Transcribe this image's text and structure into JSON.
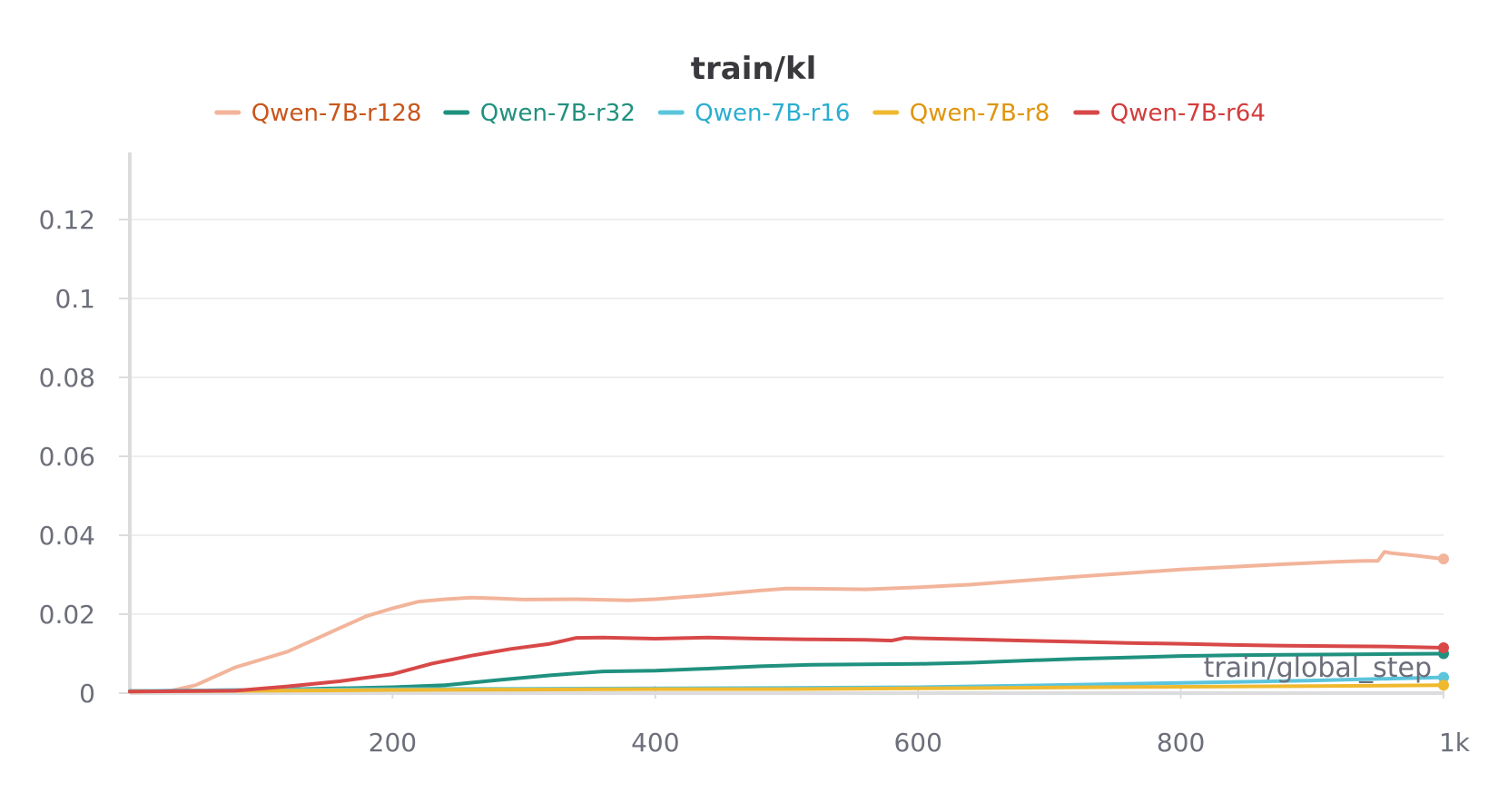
{
  "chart_data": {
    "type": "line",
    "title": "train/kl",
    "xlabel": "train/global_step",
    "ylabel": "",
    "xlim": [
      0,
      1000
    ],
    "ylim": [
      0,
      0.137
    ],
    "x_ticks": [
      200,
      400,
      600,
      800,
      1000
    ],
    "x_tick_labels": [
      "200",
      "400",
      "600",
      "800",
      "1k"
    ],
    "y_ticks": [
      0,
      0.02,
      0.04,
      0.06,
      0.08,
      0.1,
      0.12
    ],
    "y_tick_labels": [
      "0",
      "0.02",
      "0.04",
      "0.06",
      "0.08",
      "0.1",
      "0.12"
    ],
    "grid": true,
    "legend_position": "top-center",
    "series": [
      {
        "name": "Qwen-7B-r128",
        "color": "#f2b49a",
        "label_color": "#c8561c",
        "x": [
          0,
          30,
          50,
          80,
          100,
          120,
          140,
          160,
          180,
          200,
          220,
          240,
          260,
          280,
          300,
          340,
          380,
          400,
          440,
          480,
          500,
          540,
          560,
          600,
          640,
          680,
          720,
          760,
          800,
          840,
          880,
          920,
          940,
          950,
          955,
          960,
          980,
          1000
        ],
        "y": [
          0.0005,
          0.0005,
          0.002,
          0.0065,
          0.0085,
          0.0105,
          0.0135,
          0.0165,
          0.0195,
          0.0215,
          0.0232,
          0.0238,
          0.0242,
          0.024,
          0.0237,
          0.0238,
          0.0235,
          0.0238,
          0.0248,
          0.026,
          0.0265,
          0.0264,
          0.0263,
          0.0268,
          0.0275,
          0.0285,
          0.0295,
          0.0304,
          0.0313,
          0.032,
          0.0327,
          0.0333,
          0.0335,
          0.0335,
          0.0358,
          0.0355,
          0.0348,
          0.034
        ]
      },
      {
        "name": "Qwen-7B-r32",
        "color": "#20917f",
        "label_color": "#20917f",
        "x": [
          0,
          100,
          200,
          240,
          280,
          320,
          360,
          400,
          440,
          480,
          520,
          560,
          600,
          640,
          680,
          720,
          760,
          800,
          840,
          880,
          920,
          960,
          1000
        ],
        "y": [
          0.0005,
          0.0008,
          0.0015,
          0.002,
          0.0033,
          0.0045,
          0.0055,
          0.0057,
          0.0062,
          0.0068,
          0.0072,
          0.0073,
          0.0074,
          0.0077,
          0.0082,
          0.0087,
          0.009,
          0.0094,
          0.0096,
          0.0097,
          0.0098,
          0.0099,
          0.01
        ]
      },
      {
        "name": "Qwen-7B-r16",
        "color": "#5bc5dc",
        "label_color": "#2aaed0",
        "x": [
          0,
          100,
          200,
          300,
          400,
          500,
          600,
          700,
          800,
          900,
          1000
        ],
        "y": [
          0.0005,
          0.0008,
          0.001,
          0.0011,
          0.0012,
          0.0013,
          0.0015,
          0.002,
          0.0026,
          0.0032,
          0.004
        ]
      },
      {
        "name": "Qwen-7B-r8",
        "color": "#efb92f",
        "label_color": "#e0950c",
        "x": [
          0,
          100,
          200,
          300,
          400,
          500,
          600,
          700,
          800,
          900,
          1000
        ],
        "y": [
          0.0004,
          0.0006,
          0.0008,
          0.0009,
          0.001,
          0.001,
          0.0012,
          0.0014,
          0.0016,
          0.0018,
          0.002
        ]
      },
      {
        "name": "Qwen-7B-r64",
        "color": "#d84848",
        "label_color": "#d43c3c",
        "x": [
          0,
          80,
          120,
          160,
          200,
          230,
          260,
          290,
          320,
          340,
          360,
          400,
          440,
          480,
          520,
          560,
          580,
          590,
          600,
          640,
          680,
          720,
          760,
          800,
          840,
          880,
          920,
          960,
          1000
        ],
        "y": [
          0.0004,
          0.0006,
          0.0017,
          0.003,
          0.0048,
          0.0075,
          0.0095,
          0.0112,
          0.0125,
          0.014,
          0.0141,
          0.0138,
          0.0141,
          0.0138,
          0.0136,
          0.0135,
          0.0133,
          0.014,
          0.0139,
          0.0136,
          0.0133,
          0.013,
          0.0127,
          0.0125,
          0.0122,
          0.012,
          0.0119,
          0.0118,
          0.0115
        ]
      }
    ]
  }
}
